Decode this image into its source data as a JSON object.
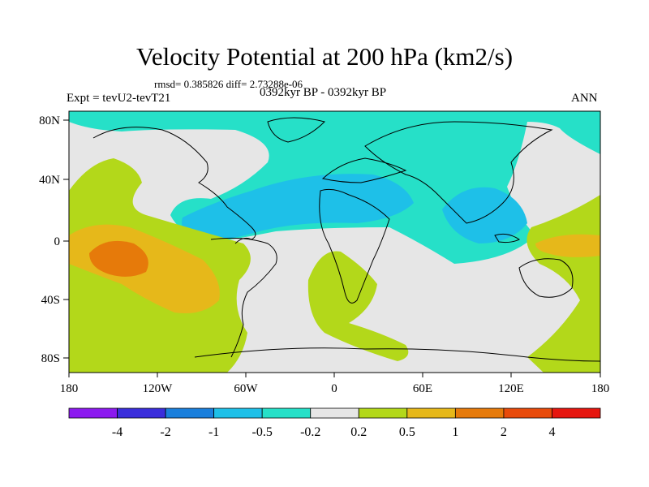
{
  "title": "Velocity Potential at 200 hPa (km2/s)",
  "stats": "rmsd= 0.385826  diff= 2.73288e-06",
  "left_label": "Expt = tevU2-tevT21",
  "center_label": "0392kyr BP - 0392kyr BP",
  "right_label": "ANN",
  "lat_labels": [
    "80N",
    "40N",
    "0",
    "40S",
    "80S"
  ],
  "lon_labels": [
    "180",
    "120W",
    "60W",
    "0",
    "60E",
    "120E",
    "180"
  ],
  "colorbar": {
    "labels": [
      "-4",
      "-2",
      "-1",
      "-0.5",
      "-0.2",
      "0.2",
      "0.5",
      "1",
      "2",
      "4"
    ],
    "colors": [
      "#8c1aef",
      "#3a2ddb",
      "#1a7fdc",
      "#1ec0e8",
      "#26e0c8",
      "#e6e6e6",
      "#b3d81a",
      "#e6b81a",
      "#e67a0a",
      "#e84a0a",
      "#e6160f"
    ]
  },
  "map_colors": {
    "teal": "#26e0c8",
    "cyan": "#1ec0e8",
    "grey": "#e6e6e6",
    "green": "#b3d81a",
    "orange": "#e6b81a",
    "darkorange": "#e67a0a"
  }
}
